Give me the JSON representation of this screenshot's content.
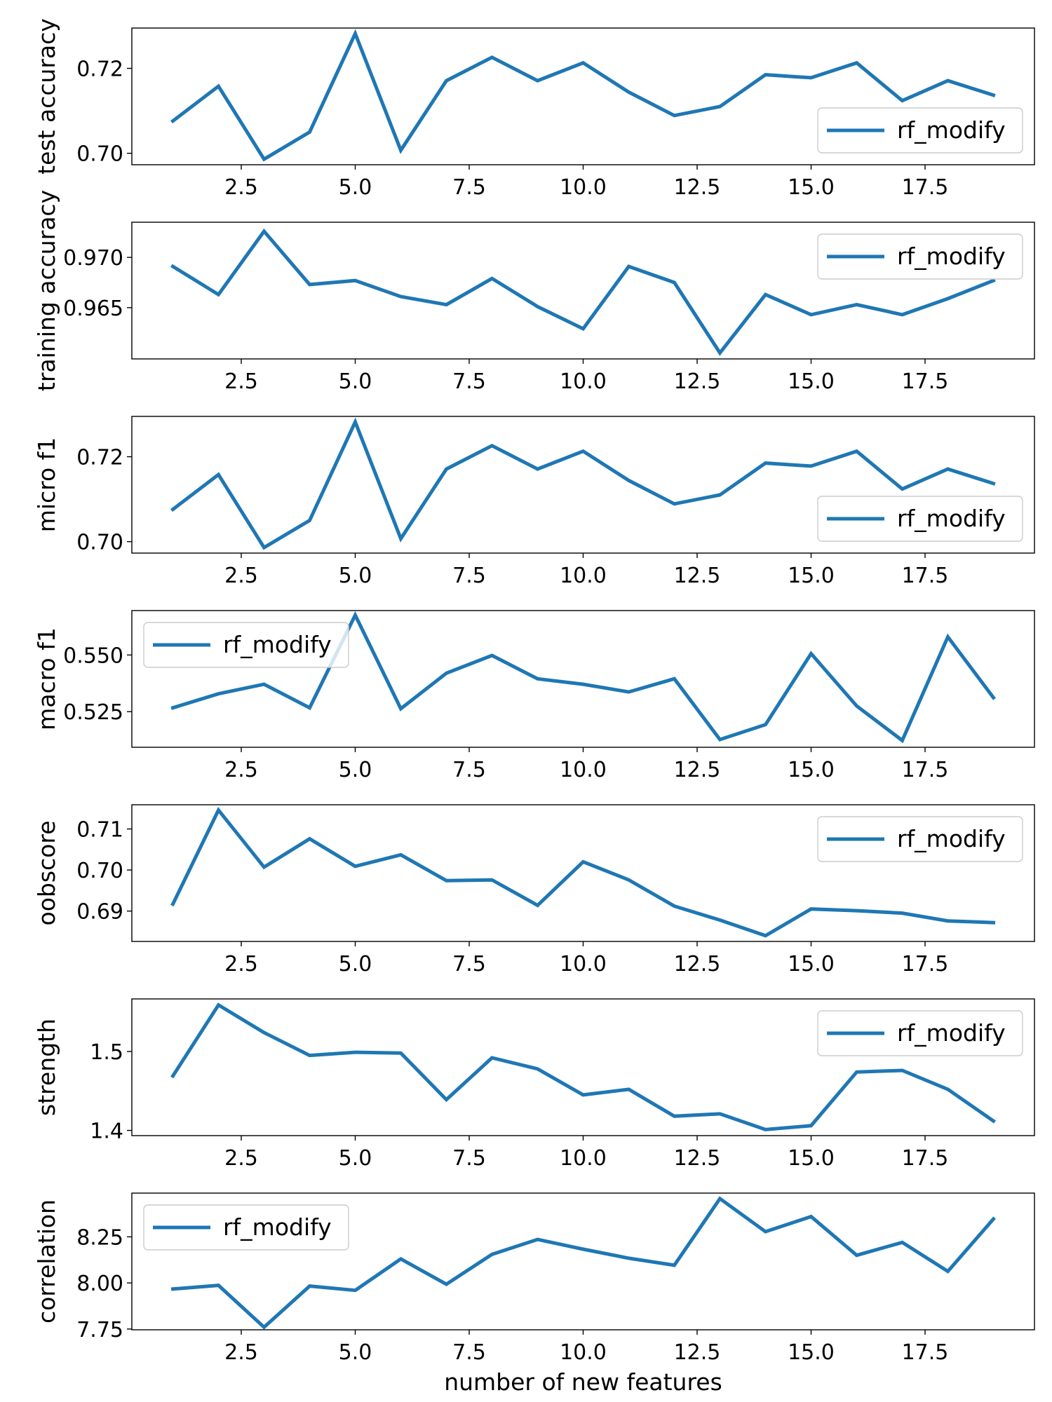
{
  "chart_data": [
    {
      "type": "line",
      "ylabel": "test accuracy",
      "xlim": [
        0.1,
        19.9
      ],
      "ylim": [
        0.6973,
        0.7295
      ],
      "xticks": [
        "2.5",
        "5.0",
        "7.5",
        "10.0",
        "12.5",
        "15.0",
        "17.5"
      ],
      "yticks": [
        "0.70",
        "0.72"
      ],
      "legend_position": "lower-right",
      "series": [
        {
          "name": "rf_modify",
          "color": "#1f77b4",
          "x": [
            1,
            2,
            3,
            4,
            5,
            6,
            7,
            8,
            9,
            10,
            11,
            12,
            13,
            14,
            15,
            16,
            17,
            18,
            19
          ],
          "y": [
            0.7076,
            0.7158,
            0.6986,
            0.705,
            0.7282,
            0.7007,
            0.7171,
            0.7226,
            0.7171,
            0.7213,
            0.7144,
            0.7089,
            0.711,
            0.7185,
            0.7178,
            0.7213,
            0.7124,
            0.7171,
            0.7137
          ]
        }
      ]
    },
    {
      "type": "line",
      "ylabel": "training accuracy",
      "xlim": [
        0.1,
        19.9
      ],
      "ylim": [
        0.9599,
        0.9735
      ],
      "xticks": [
        "2.5",
        "5.0",
        "7.5",
        "10.0",
        "12.5",
        "15.0",
        "17.5"
      ],
      "yticks": [
        "0.965",
        "0.970"
      ],
      "legend_position": "upper-right",
      "series": [
        {
          "name": "rf_modify",
          "color": "#1f77b4",
          "x": [
            1,
            2,
            3,
            4,
            5,
            6,
            7,
            8,
            9,
            10,
            11,
            12,
            13,
            14,
            15,
            16,
            17,
            18,
            19
          ],
          "y": [
            0.9691,
            0.9663,
            0.9726,
            0.9673,
            0.9677,
            0.9661,
            0.9653,
            0.9679,
            0.9651,
            0.9629,
            0.9691,
            0.9675,
            0.9605,
            0.9663,
            0.9643,
            0.9653,
            0.9643,
            0.9659,
            0.9677
          ]
        }
      ]
    },
    {
      "type": "line",
      "ylabel": "micro f1",
      "xlim": [
        0.1,
        19.9
      ],
      "ylim": [
        0.6973,
        0.7295
      ],
      "xticks": [
        "2.5",
        "5.0",
        "7.5",
        "10.0",
        "12.5",
        "15.0",
        "17.5"
      ],
      "yticks": [
        "0.70",
        "0.72"
      ],
      "legend_position": "lower-right",
      "series": [
        {
          "name": "rf_modify",
          "color": "#1f77b4",
          "x": [
            1,
            2,
            3,
            4,
            5,
            6,
            7,
            8,
            9,
            10,
            11,
            12,
            13,
            14,
            15,
            16,
            17,
            18,
            19
          ],
          "y": [
            0.7076,
            0.7158,
            0.6986,
            0.705,
            0.7282,
            0.7007,
            0.7171,
            0.7226,
            0.7171,
            0.7213,
            0.7144,
            0.7089,
            0.711,
            0.7185,
            0.7178,
            0.7213,
            0.7124,
            0.7171,
            0.7137
          ]
        }
      ]
    },
    {
      "type": "line",
      "ylabel": "macro f1",
      "xlim": [
        0.1,
        19.9
      ],
      "ylim": [
        0.5093,
        0.5696
      ],
      "xticks": [
        "2.5",
        "5.0",
        "7.5",
        "10.0",
        "12.5",
        "15.0",
        "17.5"
      ],
      "yticks": [
        "0.525",
        "0.550"
      ],
      "legend_position": "upper-left",
      "series": [
        {
          "name": "rf_modify",
          "color": "#1f77b4",
          "x": [
            1,
            2,
            3,
            4,
            5,
            6,
            7,
            8,
            9,
            10,
            11,
            12,
            13,
            14,
            15,
            16,
            17,
            18,
            19
          ],
          "y": [
            0.5267,
            0.5329,
            0.5371,
            0.5267,
            0.5676,
            0.5263,
            0.542,
            0.5498,
            0.5395,
            0.5371,
            0.5337,
            0.5395,
            0.5127,
            0.5193,
            0.5506,
            0.5275,
            0.5123,
            0.558,
            0.5312
          ]
        }
      ]
    },
    {
      "type": "line",
      "ylabel": "oobscore",
      "xlim": [
        0.1,
        19.9
      ],
      "ylim": [
        0.6826,
        0.7159
      ],
      "xticks": [
        "2.5",
        "5.0",
        "7.5",
        "10.0",
        "12.5",
        "15.0",
        "17.5"
      ],
      "yticks": [
        "0.69",
        "0.70",
        "0.71"
      ],
      "legend_position": "upper-right",
      "series": [
        {
          "name": "rf_modify",
          "color": "#1f77b4",
          "x": [
            1,
            2,
            3,
            4,
            5,
            6,
            7,
            8,
            9,
            10,
            11,
            12,
            13,
            14,
            15,
            16,
            17,
            18,
            19
          ],
          "y": [
            0.6917,
            0.7146,
            0.7007,
            0.7076,
            0.7009,
            0.7037,
            0.6974,
            0.6976,
            0.6914,
            0.702,
            0.6976,
            0.6912,
            0.6878,
            0.684,
            0.6905,
            0.6901,
            0.6895,
            0.6876,
            0.6872
          ]
        }
      ]
    },
    {
      "type": "line",
      "ylabel": "strength",
      "xlim": [
        0.1,
        19.9
      ],
      "ylim": [
        1.3934,
        1.5666
      ],
      "xticks": [
        "2.5",
        "5.0",
        "7.5",
        "10.0",
        "12.5",
        "15.0",
        "17.5"
      ],
      "yticks": [
        "1.4",
        "1.5"
      ],
      "legend_position": "upper-right",
      "series": [
        {
          "name": "rf_modify",
          "color": "#1f77b4",
          "x": [
            1,
            2,
            3,
            4,
            5,
            6,
            7,
            8,
            9,
            10,
            11,
            12,
            13,
            14,
            15,
            16,
            17,
            18,
            19
          ],
          "y": [
            1.469,
            1.559,
            1.524,
            1.495,
            1.499,
            1.498,
            1.439,
            1.492,
            1.478,
            1.445,
            1.452,
            1.418,
            1.421,
            1.401,
            1.406,
            1.474,
            1.476,
            1.452,
            1.412
          ]
        }
      ]
    },
    {
      "type": "line",
      "ylabel": "correlation",
      "xlabel": "number of new features",
      "xlim": [
        0.1,
        19.9
      ],
      "ylim": [
        7.7458,
        8.4872
      ],
      "xticks": [
        "2.5",
        "5.0",
        "7.5",
        "10.0",
        "12.5",
        "15.0",
        "17.5"
      ],
      "yticks": [
        "7.75",
        "8.00",
        "8.25"
      ],
      "legend_position": "upper-left",
      "series": [
        {
          "name": "rf_modify",
          "color": "#1f77b4",
          "x": [
            1,
            2,
            3,
            4,
            5,
            6,
            7,
            8,
            9,
            10,
            11,
            12,
            13,
            14,
            15,
            16,
            17,
            18,
            19
          ],
          "y": [
            7.967,
            7.987,
            7.76,
            7.983,
            7.96,
            8.13,
            7.993,
            8.155,
            8.236,
            8.183,
            8.134,
            8.096,
            8.457,
            8.278,
            8.36,
            8.15,
            8.22,
            8.063,
            8.347
          ]
        }
      ]
    }
  ]
}
